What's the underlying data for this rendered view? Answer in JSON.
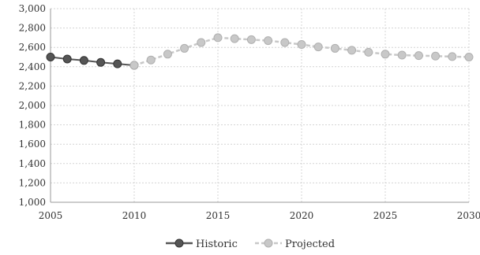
{
  "chart_data": {
    "type": "line",
    "x_ticks": [
      "2005",
      "2010",
      "2015",
      "2020",
      "2025",
      "2030"
    ],
    "y_ticks": [
      "1,000",
      "1,200",
      "1,400",
      "1,600",
      "1,800",
      "2,000",
      "2,200",
      "2,400",
      "2,600",
      "2,800",
      "3,000"
    ],
    "xlim": [
      2005,
      2030
    ],
    "ylim": [
      1000,
      3000
    ],
    "grid": true,
    "legend_position": "bottom",
    "series": [
      {
        "name": "Historic",
        "color": "#555555",
        "marker": "circle",
        "x": [
          2005,
          2006,
          2007,
          2008,
          2009,
          2010
        ],
        "y": [
          2500,
          2480,
          2465,
          2445,
          2430,
          2415
        ]
      },
      {
        "name": "Projected",
        "color": "#c8c8c8",
        "marker": "circle",
        "x": [
          2010,
          2011,
          2012,
          2013,
          2014,
          2015,
          2016,
          2017,
          2018,
          2019,
          2020,
          2021,
          2022,
          2023,
          2024,
          2025,
          2026,
          2027,
          2028,
          2029,
          2030
        ],
        "y": [
          2415,
          2470,
          2530,
          2590,
          2650,
          2700,
          2690,
          2680,
          2670,
          2650,
          2630,
          2605,
          2590,
          2570,
          2550,
          2530,
          2520,
          2515,
          2510,
          2505,
          2500
        ]
      }
    ]
  }
}
